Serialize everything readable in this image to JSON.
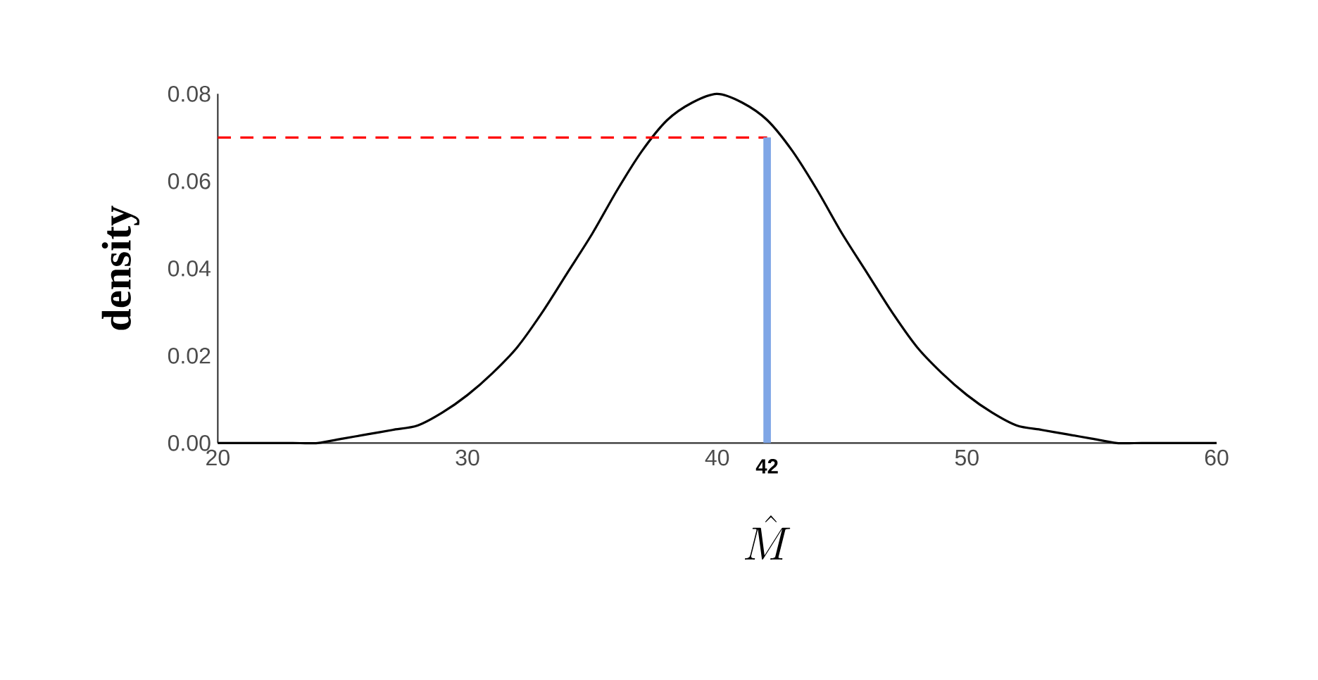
{
  "chart_data": {
    "type": "line",
    "xlabel": "\\hat{M}",
    "ylabel": "density",
    "xlim": [
      20,
      60
    ],
    "ylim": [
      0,
      0.08
    ],
    "xticks": [
      20,
      30,
      40,
      50,
      60
    ],
    "yticks": [
      {
        "value": 0,
        "label": "0.00"
      },
      {
        "value": 0.02,
        "label": "0.02"
      },
      {
        "value": 0.04,
        "label": "0.04"
      },
      {
        "value": 0.06,
        "label": "0.06"
      },
      {
        "value": 0.08,
        "label": "0.08"
      }
    ],
    "annotations": [
      {
        "text": "42",
        "x": 42,
        "y": 0
      }
    ],
    "series": [
      {
        "color": "#000000",
        "line_style": "solid",
        "x": [
          20,
          21,
          22,
          23,
          24,
          25,
          26,
          27,
          28,
          29,
          30,
          31,
          32,
          33,
          34,
          35,
          36,
          37,
          38,
          39,
          40,
          41,
          42,
          43,
          44,
          45,
          46,
          47,
          48,
          49,
          50,
          51,
          52,
          53,
          54,
          55,
          56,
          57,
          58,
          59,
          60
        ],
        "values": [
          0.0,
          0.0,
          0.0,
          0.0,
          0.0,
          0.001,
          0.002,
          0.003,
          0.004,
          0.007,
          0.011,
          0.016,
          0.022,
          0.03,
          0.039,
          0.048,
          0.058,
          0.067,
          0.074,
          0.078,
          0.08,
          0.078,
          0.074,
          0.067,
          0.058,
          0.048,
          0.039,
          0.03,
          0.022,
          0.016,
          0.011,
          0.007,
          0.004,
          0.003,
          0.002,
          0.001,
          0.0,
          0.0,
          0.0,
          0.0,
          0.0
        ]
      },
      {
        "color": "#ff0000",
        "line_style": "dashed",
        "x": [
          20,
          42
        ],
        "values": [
          0.07,
          0.07
        ]
      },
      {
        "color": "#7fa6e6",
        "line_style": "solid",
        "x": [
          42,
          42
        ],
        "values": [
          0,
          0.07
        ]
      }
    ]
  }
}
